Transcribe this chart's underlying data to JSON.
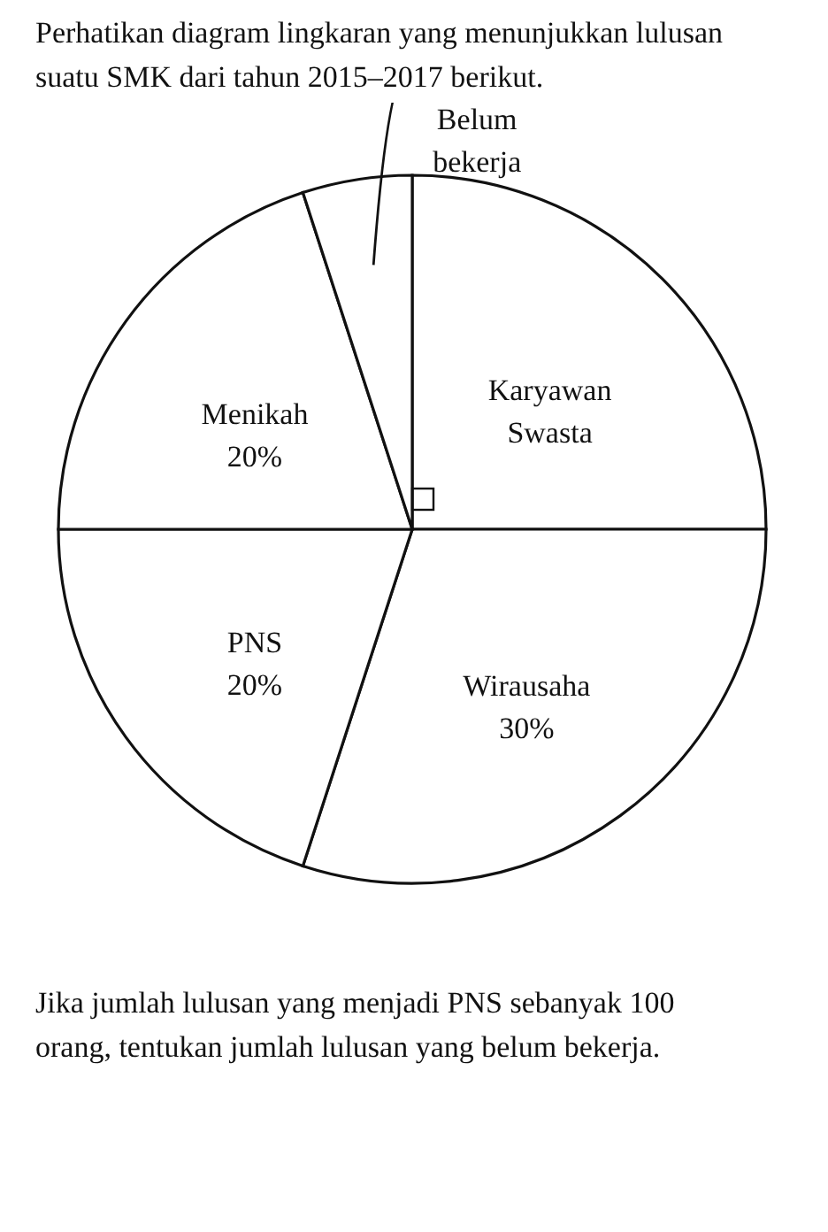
{
  "chart_data": {
    "type": "pie",
    "title": "Perhatikan diagram lingkaran yang menunjukkan lulusan suatu SMK dari tahun 2015–2017 berikut.",
    "categories": [
      "Karyawan Swasta",
      "Wirausaha",
      "PNS",
      "Menikah",
      "Belum bekerja"
    ],
    "values": [
      25,
      30,
      20,
      20,
      5
    ],
    "value_labels": [
      null,
      "30%",
      "20%",
      "20%",
      null
    ],
    "colors": [
      "#ffffff",
      "#ffffff",
      "#ffffff",
      "#ffffff",
      "#ffffff"
    ],
    "annotations": [
      "Jika jumlah lulusan yang menjadi PNS sebanyak 100 orang, tentukan jumlah lulusan yang belum bekerja."
    ]
  }
}
